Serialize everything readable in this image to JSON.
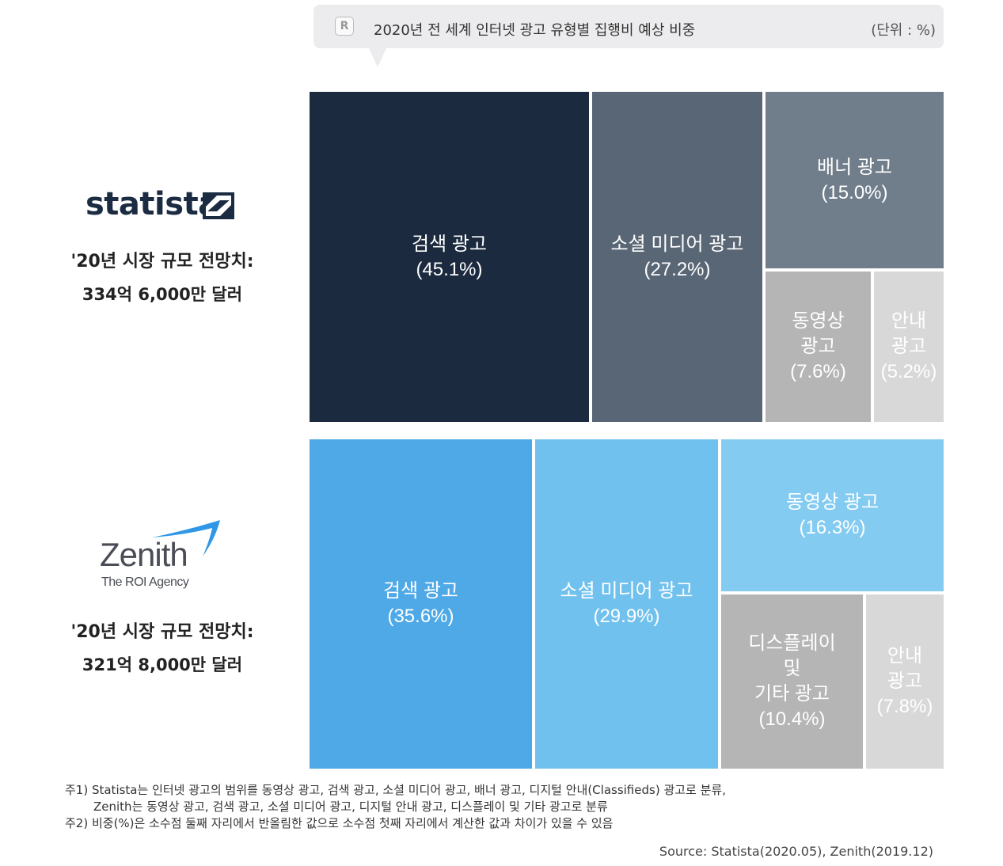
{
  "header": {
    "icon": "r-logo-icon",
    "title": "2020년 전 세계 인터넷 광고 유형별 집행비 예상 비중",
    "unit": "(단위 : %)"
  },
  "statista": {
    "logo_text": "statista",
    "market_label": "'20년 시장 규모 전망치:",
    "market_value": "334억 6,000만 달러"
  },
  "zenith": {
    "logo_text": "Zenith",
    "logo_tagline": "The ROI Agency",
    "market_label": "'20년 시장 규모 전망치:",
    "market_value": "321억 8,000만 달러"
  },
  "chart_data": [
    {
      "type": "treemap",
      "source": "Statista",
      "categories": [
        "검색 광고",
        "소셜 미디어 광고",
        "배너 광고",
        "동영상 광고",
        "안내 광고"
      ],
      "values": [
        45.1,
        27.2,
        15.0,
        7.6,
        5.2
      ],
      "labels": [
        "검색 광고\n(45.1%)",
        "소셜 미디어 광고\n(27.2%)",
        "배너 광고\n(15.0%)",
        "동영상\n광고\n(7.6%)",
        "안내\n광고\n(5.2%)"
      ],
      "colors": [
        "#1b2a3f",
        "#596675",
        "#707d8b",
        "#b5b5b5",
        "#d8d8d8"
      ],
      "text_colors": [
        "#ffffff",
        "#ffffff",
        "#ffffff",
        "#ffffff",
        "#ffffff"
      ]
    },
    {
      "type": "treemap",
      "source": "Zenith",
      "categories": [
        "검색 광고",
        "소셜 미디어 광고",
        "동영상 광고",
        "디스플레이 및 기타 광고",
        "안내 광고"
      ],
      "values": [
        35.6,
        29.9,
        16.3,
        10.4,
        7.8
      ],
      "labels": [
        "검색 광고\n(35.6%)",
        "소셜 미디어 광고\n(29.9%)",
        "동영상 광고\n(16.3%)",
        "디스플레이\n및\n기타 광고\n(10.4%)",
        "안내\n광고\n(7.8%)"
      ],
      "colors": [
        "#4ea9e6",
        "#71c1ee",
        "#84cbf1",
        "#b5b5b5",
        "#d8d8d8"
      ],
      "text_colors": [
        "#ffffff",
        "#ffffff",
        "#ffffff",
        "#ffffff",
        "#ffffff"
      ]
    }
  ],
  "notes": {
    "line1": "주1) Statista는 인터넷 광고의 범위를 동영상 광고, 검색 광고, 소셜 미디어 광고, 배너 광고, 디지털 안내(Classifieds) 광고로 분류,",
    "line2": "Zenith는 동영상 광고, 검색 광고, 소셜 미디어 광고, 디지털 안내 광고, 디스플레이 및 기타 광고로 분류",
    "line3": "주2) 비중(%)은 소수점 둘째 자리에서 반올림한 값으로 소수점 첫째 자리에서 계산한 값과 차이가 있을 수 있음"
  },
  "source": "Source: Statista(2020.05), Zenith(2019.12)"
}
